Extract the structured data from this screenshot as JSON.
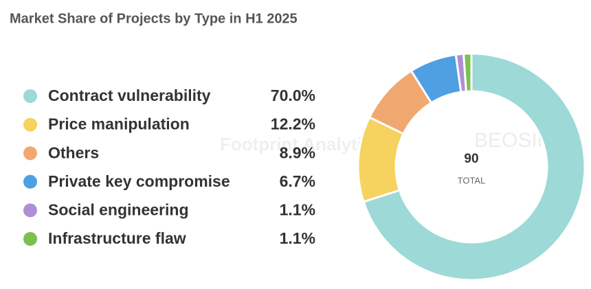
{
  "chart_data": {
    "type": "donut",
    "title": "Market Share of Projects by Type in H1 2025",
    "categories": [
      "Contract vulnerability",
      "Price manipulation",
      "Others",
      "Private key compromise",
      "Social engineering",
      "Infrastructure flaw"
    ],
    "values": [
      70.0,
      12.2,
      8.9,
      6.7,
      1.1,
      1.1
    ],
    "value_labels": [
      "70.0%",
      "12.2%",
      "8.9%",
      "6.7%",
      "1.1%",
      "1.1%"
    ],
    "colors": [
      "#9dd9d7",
      "#f6d25e",
      "#f0a870",
      "#4f9fe3",
      "#b08fd6",
      "#7cc04f"
    ],
    "total": 90,
    "total_label": "TOTAL",
    "watermarks": [
      "Footprint Analytics",
      "BEOSIN"
    ]
  }
}
